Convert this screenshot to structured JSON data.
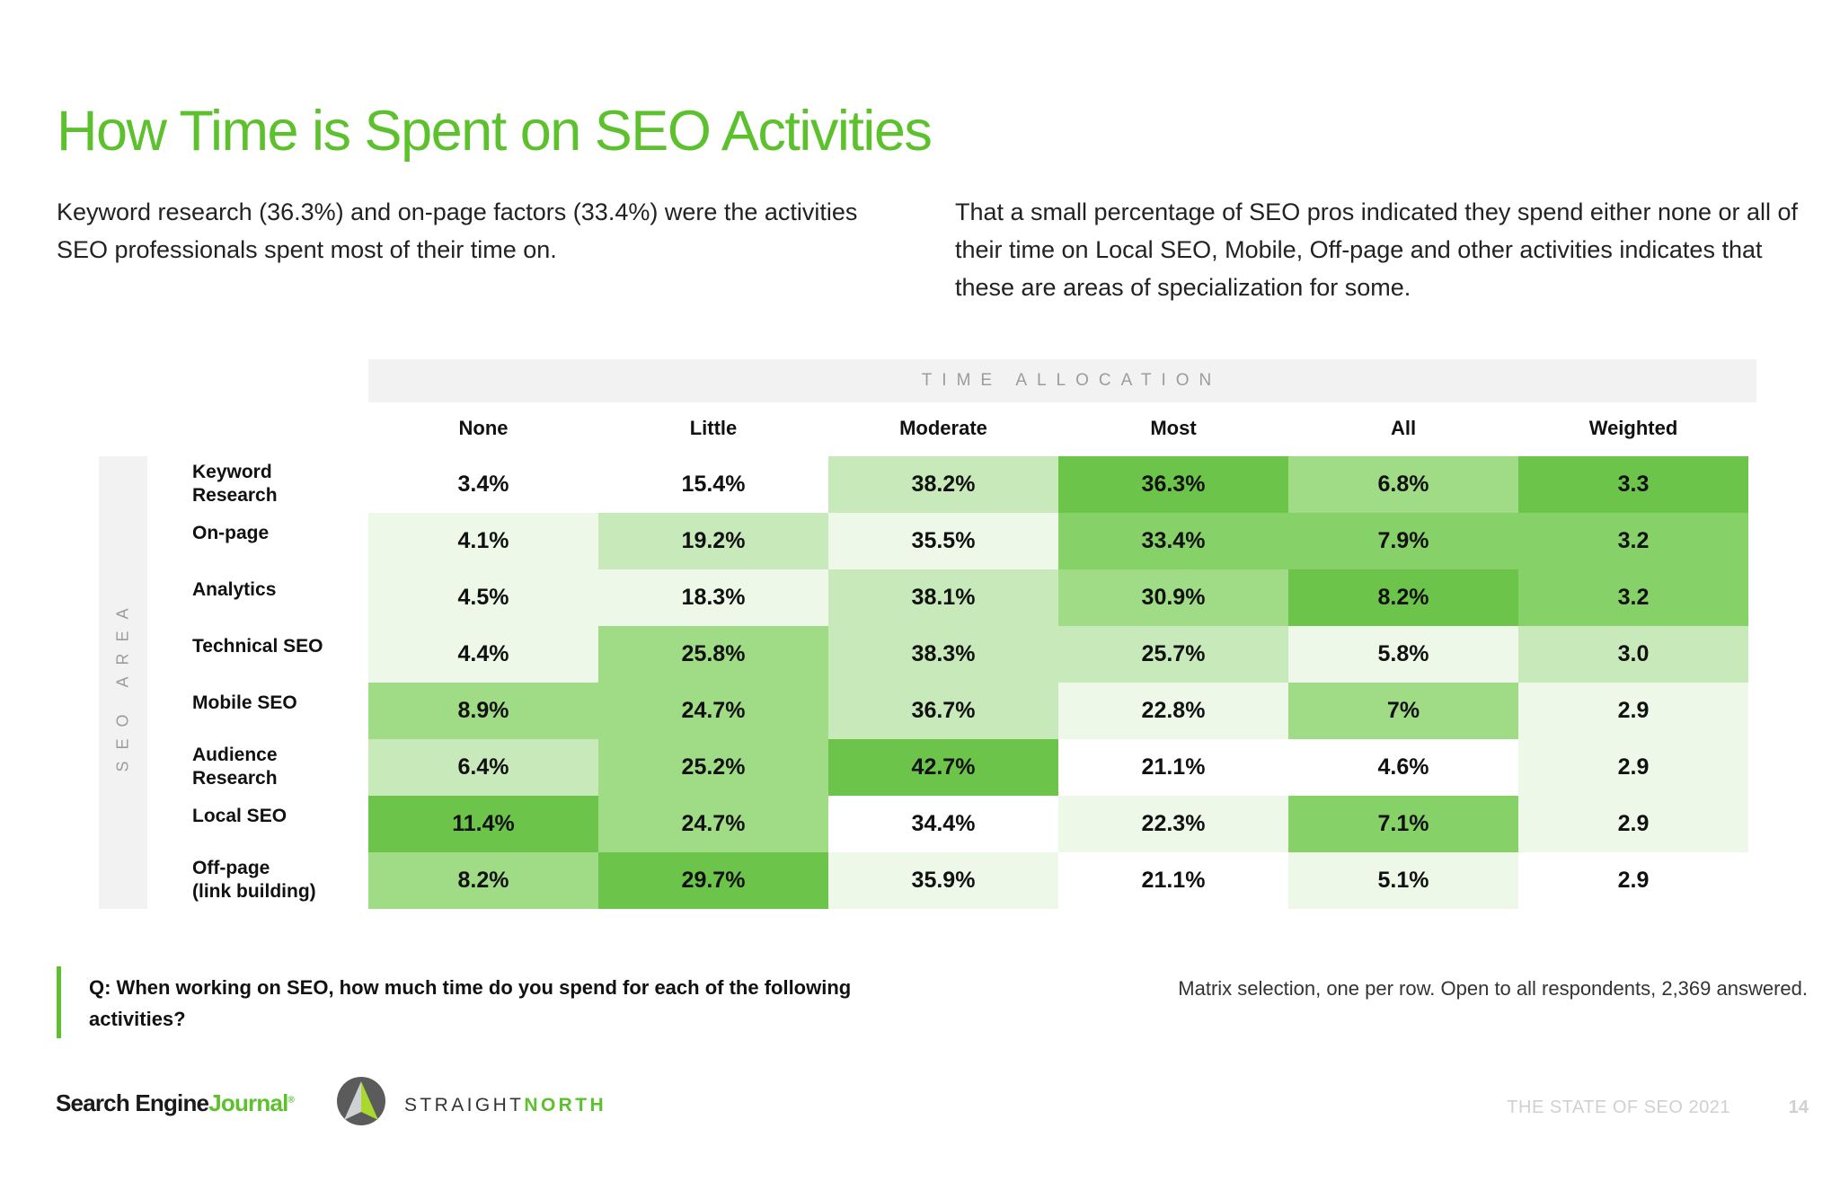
{
  "title": "How Time is Spent on SEO Activities",
  "intro_left": "Keyword research (36.3%) and on-page factors (33.4%) were the activities SEO professionals spent most of their time on.",
  "intro_right": "That a small percentage of SEO pros indicated they spend either none or all of their time on Local SEO, Mobile, Off-page and other activities indicates that these are areas of specialization for some.",
  "time_allocation_label": "TIME ALLOCATION",
  "seo_area_label": "SEO AREA",
  "chart_data": {
    "type": "heatmap",
    "title": "How Time is Spent on SEO Activities",
    "columns": [
      "None",
      "Little",
      "Moderate",
      "Most",
      "All",
      "Weighted"
    ],
    "rows": [
      {
        "label_line1": "Keyword",
        "label_line2": "Research",
        "values": [
          "3.4%",
          "15.4%",
          "38.2%",
          "36.3%",
          "6.8%",
          "3.3"
        ],
        "shades": [
          0,
          0,
          2,
          5,
          3,
          5
        ]
      },
      {
        "label_line1": "On-page",
        "label_line2": "",
        "values": [
          "4.1%",
          "19.2%",
          "35.5%",
          "33.4%",
          "7.9%",
          "3.2"
        ],
        "shades": [
          1,
          2,
          1,
          4,
          4,
          4
        ]
      },
      {
        "label_line1": "Analytics",
        "label_line2": "",
        "values": [
          "4.5%",
          "18.3%",
          "38.1%",
          "30.9%",
          "8.2%",
          "3.2"
        ],
        "shades": [
          1,
          1,
          2,
          3,
          5,
          4
        ]
      },
      {
        "label_line1": "Technical SEO",
        "label_line2": "",
        "values": [
          "4.4%",
          "25.8%",
          "38.3%",
          "25.7%",
          "5.8%",
          "3.0"
        ],
        "shades": [
          1,
          3,
          2,
          2,
          1,
          2
        ]
      },
      {
        "label_line1": "Mobile SEO",
        "label_line2": "",
        "values": [
          "8.9%",
          "24.7%",
          "36.7%",
          "22.8%",
          "7%",
          "2.9"
        ],
        "shades": [
          3,
          3,
          2,
          1,
          3,
          1
        ]
      },
      {
        "label_line1": "Audience",
        "label_line2": "Research",
        "values": [
          "6.4%",
          "25.2%",
          "42.7%",
          "21.1%",
          "4.6%",
          "2.9"
        ],
        "shades": [
          2,
          3,
          5,
          0,
          0,
          1
        ]
      },
      {
        "label_line1": "Local SEO",
        "label_line2": "",
        "values": [
          "11.4%",
          "24.7%",
          "34.4%",
          "22.3%",
          "7.1%",
          "2.9"
        ],
        "shades": [
          5,
          3,
          0,
          1,
          4,
          1
        ]
      },
      {
        "label_line1": "Off-page",
        "label_line2": "(link building)",
        "values": [
          "8.2%",
          "29.7%",
          "35.9%",
          "21.1%",
          "5.1%",
          "2.9"
        ],
        "shades": [
          3,
          5,
          1,
          0,
          1,
          0
        ]
      }
    ],
    "palette": [
      "#ffffff",
      "#edf8e8",
      "#c8e9b9",
      "#a0db86",
      "#86d168",
      "#6cc44a"
    ]
  },
  "question": "Q: When working on SEO, how much time do you spend for each of the following activities?",
  "methodology": "Matrix selection, one per row. Open to all respondents, 2,369 answered.",
  "footer": {
    "logo_sej_part1": "Search Engine",
    "logo_sej_part2": "Journal",
    "logo_sej_reg": "®",
    "logo_sn_part1": "STRAIGHT",
    "logo_sn_part2": "NORTH",
    "report_title": "THE STATE OF SEO 2021",
    "page_number": "14"
  }
}
